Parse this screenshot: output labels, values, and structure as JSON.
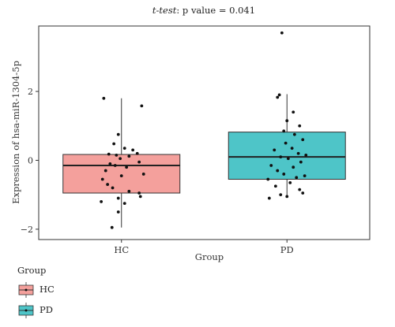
{
  "title_parts": {
    "prefix": "t-test",
    "suffix": ": p value = 0.041",
    "p_symbol": "p"
  },
  "chart_data": {
    "type": "box",
    "title": "t-test: p value = 0.041",
    "xlabel": "Group",
    "ylabel": "Expression of hsa-miR-1304-5p",
    "categories": [
      "HC",
      "PD"
    ],
    "ylim": [
      -2.3,
      3.9
    ],
    "yticks": [
      -2,
      0,
      2
    ],
    "grid": false,
    "legend": {
      "title": "Group",
      "placement": "bottom-left",
      "entries": [
        "HC",
        "PD"
      ]
    },
    "colors": {
      "HC": "#F4A09C",
      "PD": "#4EC5C8"
    },
    "boxes": [
      {
        "name": "HC",
        "min": -1.95,
        "q1": -0.95,
        "median": -0.15,
        "q3": 0.17,
        "max": 1.8
      },
      {
        "name": "PD",
        "min": -1.05,
        "q1": -0.55,
        "median": 0.1,
        "q3": 0.82,
        "max": 1.92
      }
    ],
    "points": {
      "HC": [
        [
          -0.28,
          1.8
        ],
        [
          0.32,
          1.58
        ],
        [
          -0.05,
          0.75
        ],
        [
          -0.12,
          0.48
        ],
        [
          0.05,
          0.35
        ],
        [
          0.18,
          0.3
        ],
        [
          0.25,
          0.2
        ],
        [
          -0.2,
          0.18
        ],
        [
          -0.08,
          0.15
        ],
        [
          0.12,
          0.12
        ],
        [
          -0.02,
          0.05
        ],
        [
          0.28,
          -0.05
        ],
        [
          -0.18,
          -0.1
        ],
        [
          -0.1,
          -0.15
        ],
        [
          0.08,
          -0.2
        ],
        [
          -0.25,
          -0.3
        ],
        [
          0.35,
          -0.4
        ],
        [
          0.0,
          -0.45
        ],
        [
          -0.3,
          -0.55
        ],
        [
          -0.22,
          -0.7
        ],
        [
          -0.14,
          -0.8
        ],
        [
          0.12,
          -0.9
        ],
        [
          0.28,
          -0.95
        ],
        [
          0.3,
          -1.05
        ],
        [
          -0.05,
          -1.1
        ],
        [
          -0.32,
          -1.2
        ],
        [
          0.05,
          -1.25
        ],
        [
          -0.05,
          -1.5
        ],
        [
          -0.15,
          -1.95
        ]
      ],
      "PD": [
        [
          -0.08,
          3.7
        ],
        [
          -0.12,
          1.9
        ],
        [
          -0.15,
          1.83
        ],
        [
          0.1,
          1.4
        ],
        [
          0.0,
          1.15
        ],
        [
          0.2,
          1.0
        ],
        [
          -0.05,
          0.85
        ],
        [
          0.12,
          0.75
        ],
        [
          0.25,
          0.6
        ],
        [
          -0.02,
          0.5
        ],
        [
          0.08,
          0.35
        ],
        [
          -0.2,
          0.3
        ],
        [
          0.18,
          0.2
        ],
        [
          0.3,
          0.15
        ],
        [
          -0.1,
          0.1
        ],
        [
          0.02,
          0.05
        ],
        [
          0.22,
          -0.05
        ],
        [
          -0.25,
          -0.15
        ],
        [
          0.1,
          -0.2
        ],
        [
          -0.15,
          -0.3
        ],
        [
          0.28,
          -0.45
        ],
        [
          -0.05,
          -0.4
        ],
        [
          0.15,
          -0.5
        ],
        [
          -0.3,
          -0.55
        ],
        [
          0.05,
          -0.65
        ],
        [
          -0.18,
          -0.75
        ],
        [
          0.2,
          -0.85
        ],
        [
          0.25,
          -0.95
        ],
        [
          -0.1,
          -1.0
        ],
        [
          0.0,
          -1.05
        ],
        [
          -0.28,
          -1.1
        ]
      ]
    }
  }
}
